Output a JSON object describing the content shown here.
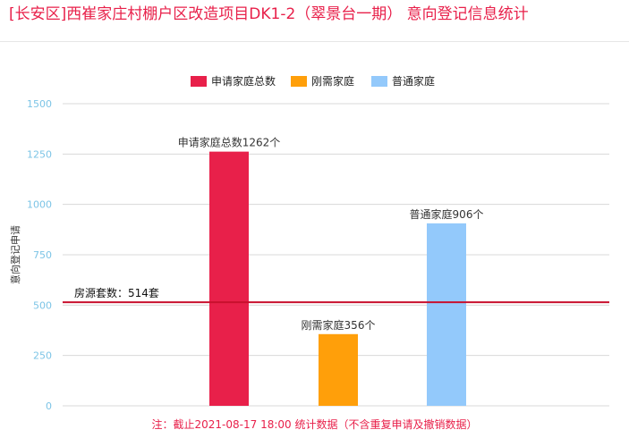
{
  "page": {
    "title": "[长安区]西崔家庄村棚户区改造项目DK1-2（翠景台一期） 意向登记信息统计",
    "footnote": "注：截止2021-08-17 18:00 统计数据（不含重复申请及撤销数据）"
  },
  "chart_data": {
    "type": "bar",
    "ylabel": "意向登记申请",
    "ylim": [
      0,
      1500
    ],
    "yticks": [
      0,
      250,
      500,
      750,
      1000,
      1250,
      1500
    ],
    "grid": true,
    "legend_position": "top-center",
    "series": [
      {
        "name": "申请家庭总数",
        "value": 1262,
        "label": "申请家庭总数1262个",
        "color": "#e8204a"
      },
      {
        "name": "刚需家庭",
        "value": 356,
        "label": "刚需家庭356个",
        "color": "#ff9f0a"
      },
      {
        "name": "普通家庭",
        "value": 906,
        "label": "普通家庭906个",
        "color": "#93c9fb"
      }
    ],
    "reference_line": {
      "value": 514,
      "label": "房源套数：514套",
      "color": "#c8102e"
    },
    "colors": {
      "tick": "#7cc4e6",
      "grid": "#d8d8d8"
    }
  }
}
